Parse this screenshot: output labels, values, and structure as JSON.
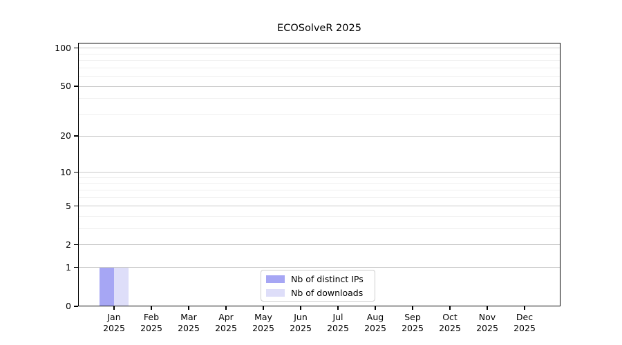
{
  "title": "ECOSolveR 2025",
  "chart_data": {
    "type": "bar",
    "title": "ECOSolveR 2025",
    "categories": [
      {
        "month": "Jan",
        "year": "2025"
      },
      {
        "month": "Feb",
        "year": "2025"
      },
      {
        "month": "Mar",
        "year": "2025"
      },
      {
        "month": "Apr",
        "year": "2025"
      },
      {
        "month": "May",
        "year": "2025"
      },
      {
        "month": "Jun",
        "year": "2025"
      },
      {
        "month": "Jul",
        "year": "2025"
      },
      {
        "month": "Aug",
        "year": "2025"
      },
      {
        "month": "Sep",
        "year": "2025"
      },
      {
        "month": "Oct",
        "year": "2025"
      },
      {
        "month": "Nov",
        "year": "2025"
      },
      {
        "month": "Dec",
        "year": "2025"
      }
    ],
    "series": [
      {
        "name": "Nb of distinct IPs",
        "color": "#a6a6f4",
        "values": [
          1,
          0,
          0,
          0,
          0,
          0,
          0,
          0,
          0,
          0,
          0,
          0
        ]
      },
      {
        "name": "Nb of downloads",
        "color": "#dedef9",
        "values": [
          1,
          0,
          0,
          0,
          0,
          0,
          0,
          0,
          0,
          0,
          0,
          0
        ]
      }
    ],
    "yscale": "log1p",
    "ylim": [
      0,
      110
    ],
    "y_major_ticks": [
      0,
      1,
      2,
      5,
      10,
      20,
      50,
      100
    ],
    "y_minor_ticks": [
      3,
      4,
      6,
      7,
      8,
      9,
      30,
      40,
      60,
      70,
      80,
      90
    ],
    "grid": true,
    "legend_position": "lower center inside",
    "colors": {
      "axis": "#000000",
      "grid_major": "#c9c9c9",
      "grid_minor": "#efefef",
      "text": "#000000"
    }
  }
}
